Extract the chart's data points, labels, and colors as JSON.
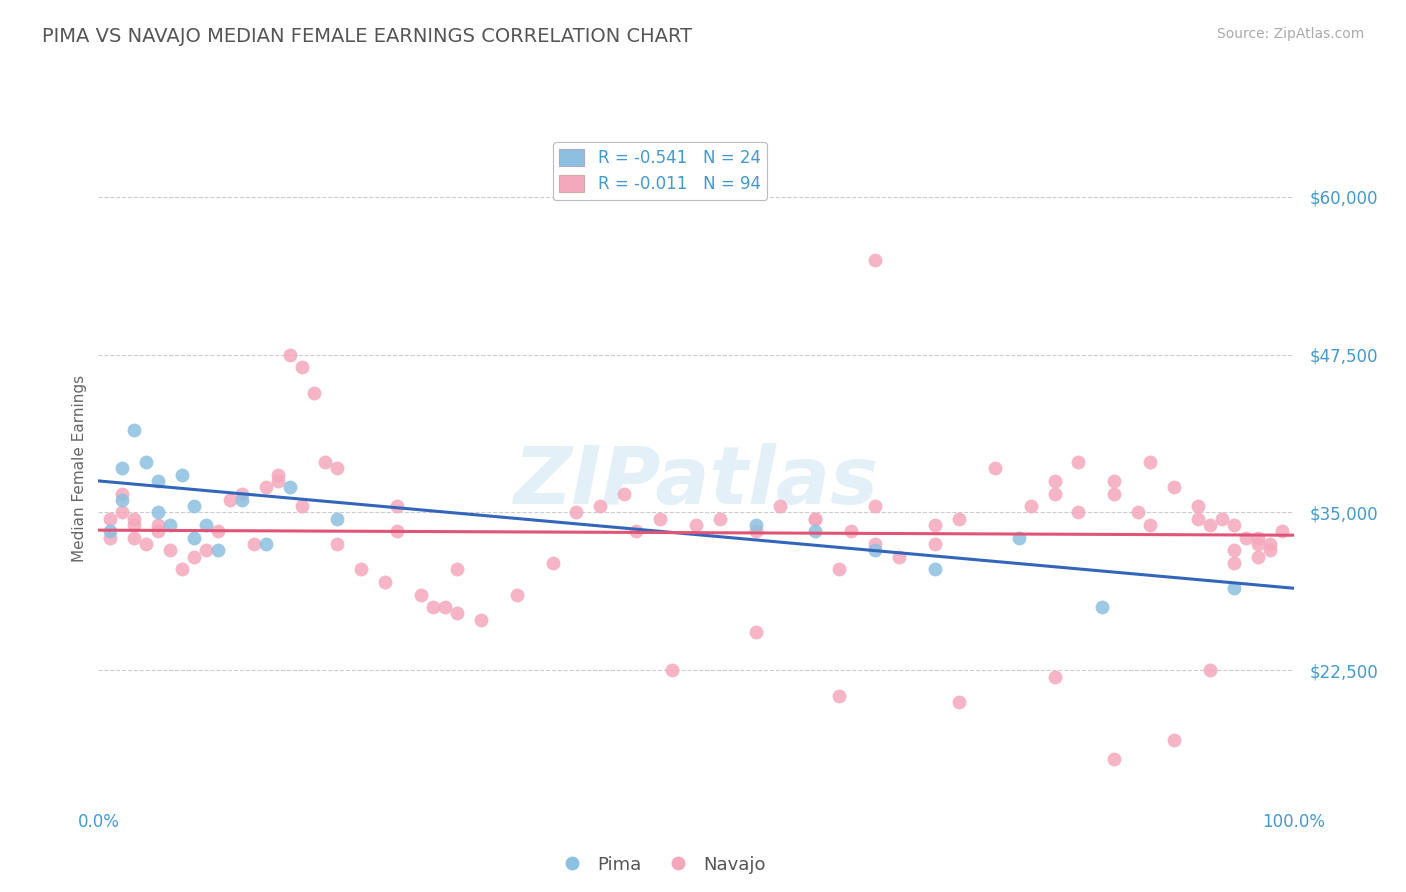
{
  "title": "PIMA VS NAVAJO MEDIAN FEMALE EARNINGS CORRELATION CHART",
  "source_text": "Source: ZipAtlas.com",
  "ylabel": "Median Female Earnings",
  "xlim": [
    0,
    100
  ],
  "ylim": [
    12000,
    65000
  ],
  "yticks": [
    22500,
    35000,
    47500,
    60000
  ],
  "ytick_labels": [
    "$22,500",
    "$35,000",
    "$47,500",
    "$60,000"
  ],
  "xtick_labels": [
    "0.0%",
    "100.0%"
  ],
  "bg_color": "#ffffff",
  "grid_color": "#cccccc",
  "title_color": "#555555",
  "title_fontsize": 14,
  "pima_color": "#8dc0e0",
  "navajo_color": "#f4a8bc",
  "pima_line_color": "#3366bb",
  "navajo_line_color": "#e05575",
  "legend_label_pima": "R = -0.541   N = 24",
  "legend_label_navajo": "R = -0.011   N = 94",
  "watermark": "ZIPatlas",
  "pima_line_x0": 0,
  "pima_line_y0": 37500,
  "pima_line_x1": 100,
  "pima_line_y1": 29000,
  "navajo_line_x0": 0,
  "navajo_line_y0": 33600,
  "navajo_line_x1": 100,
  "navajo_line_y1": 33200,
  "pima_x": [
    1,
    2,
    2,
    3,
    4,
    5,
    5,
    6,
    7,
    8,
    8,
    9,
    10,
    12,
    14,
    16,
    20,
    55,
    60,
    65,
    70,
    77,
    84,
    95
  ],
  "pima_y": [
    33500,
    38500,
    36000,
    41500,
    39000,
    37500,
    35000,
    34000,
    38000,
    33000,
    35500,
    34000,
    32000,
    36000,
    32500,
    37000,
    34500,
    34000,
    33500,
    32000,
    30500,
    33000,
    27500,
    29000
  ],
  "navajo_x": [
    1,
    1,
    2,
    2,
    3,
    3,
    3,
    4,
    5,
    5,
    6,
    7,
    8,
    9,
    10,
    11,
    12,
    13,
    14,
    15,
    16,
    17,
    18,
    19,
    20,
    22,
    24,
    25,
    27,
    29,
    30,
    32,
    35,
    38,
    40,
    42,
    44,
    47,
    50,
    52,
    55,
    57,
    60,
    62,
    65,
    67,
    70,
    72,
    75,
    78,
    80,
    82,
    85,
    87,
    88,
    90,
    92,
    93,
    94,
    95,
    96,
    97,
    98,
    99,
    15,
    17,
    20,
    25,
    30,
    45,
    60,
    63,
    65,
    70,
    80,
    85,
    88,
    92,
    95,
    97,
    48,
    62,
    72,
    80,
    85,
    90,
    93,
    95,
    97,
    98,
    28,
    55,
    65,
    82
  ],
  "navajo_y": [
    34500,
    33000,
    35000,
    36500,
    34000,
    34500,
    33000,
    32500,
    34000,
    33500,
    32000,
    30500,
    31500,
    32000,
    33500,
    36000,
    36500,
    32500,
    37000,
    38000,
    47500,
    46500,
    44500,
    39000,
    38500,
    30500,
    29500,
    35500,
    28500,
    27500,
    27000,
    26500,
    28500,
    31000,
    35000,
    35500,
    36500,
    34500,
    34000,
    34500,
    33500,
    35500,
    34500,
    30500,
    32500,
    31500,
    34000,
    34500,
    38500,
    35500,
    37500,
    39000,
    36500,
    35000,
    39000,
    37000,
    35500,
    34000,
    34500,
    32000,
    33000,
    31500,
    32500,
    33500,
    37500,
    35500,
    32500,
    33500,
    30500,
    33500,
    34500,
    33500,
    35500,
    32500,
    36500,
    37500,
    34000,
    34500,
    34000,
    33000,
    22500,
    20500,
    20000,
    22000,
    15500,
    17000,
    22500,
    31000,
    32500,
    32000,
    27500,
    25500,
    55000,
    35000
  ]
}
